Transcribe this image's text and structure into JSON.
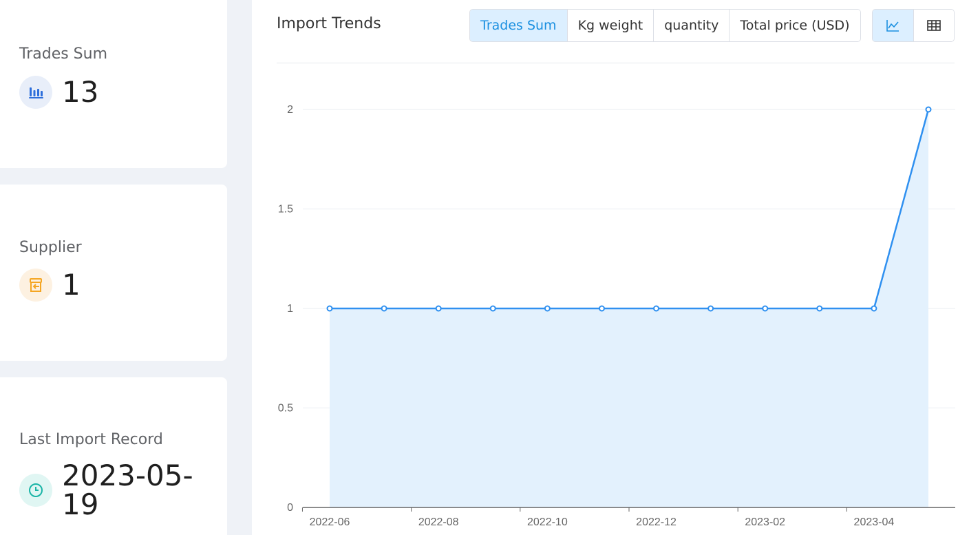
{
  "stats": {
    "trades": {
      "label": "Trades Sum",
      "value": "13",
      "icon": "bar-chart-icon",
      "color": "#2e6fdb"
    },
    "supplier": {
      "label": "Supplier",
      "value": "1",
      "icon": "storefront-icon",
      "color": "#f5a623"
    },
    "last_record": {
      "label": "Last Import Record",
      "value": "2023-05-19",
      "icon": "clock-icon",
      "color": "#19b4a6"
    }
  },
  "panel": {
    "title": "Import Trends",
    "metric_tabs": [
      {
        "label": "Trades Sum",
        "active": true
      },
      {
        "label": "Kg weight",
        "active": false
      },
      {
        "label": "quantity",
        "active": false
      },
      {
        "label": "Total price (USD)",
        "active": false
      }
    ],
    "view_toggle": [
      {
        "icon": "line-chart-icon",
        "active": true
      },
      {
        "icon": "table-icon",
        "active": false
      }
    ]
  },
  "chart_data": {
    "type": "area",
    "x": [
      "2022-06",
      "2022-07",
      "2022-08",
      "2022-09",
      "2022-10",
      "2022-11",
      "2022-12",
      "2023-01",
      "2023-02",
      "2023-03",
      "2023-04",
      "2023-05"
    ],
    "x_tick_labels": [
      "2022-06",
      "2022-08",
      "2022-10",
      "2022-12",
      "2023-02",
      "2023-04"
    ],
    "values": [
      1,
      1,
      1,
      1,
      1,
      1,
      1,
      1,
      1,
      1,
      1,
      2
    ],
    "y_ticks": [
      "0",
      "0.5",
      "1",
      "1.5",
      "2"
    ],
    "ylim": [
      0,
      2
    ],
    "grid": true,
    "colors": {
      "line": "#2f90f0",
      "fill": "#e3f1fd",
      "grid": "#e9edf2",
      "axis": "#666666"
    }
  }
}
